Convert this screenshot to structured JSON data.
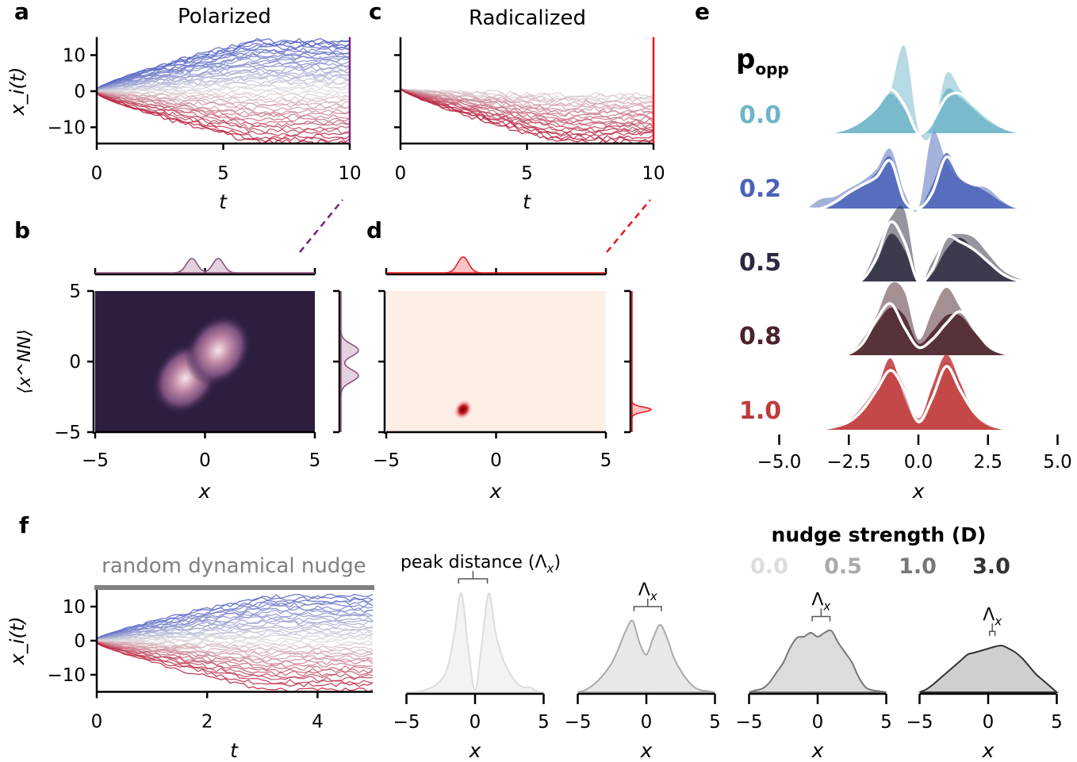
{
  "panel_labels": {
    "a": "a",
    "b": "b",
    "c": "c",
    "d": "d",
    "e": "e",
    "f": "f"
  },
  "colors": {
    "polarized_line": "#7b1f7b",
    "radicalized_line": "#e8141b",
    "heatmap_b_bg": "#2d1e3e",
    "heatmap_d_bg": "#fdeee6",
    "pos_opinion": "#3b4cc0",
    "neutral": "#dddddd",
    "neg_opinion": "#b40426"
  },
  "chart_data": [
    {
      "id": "a",
      "type": "line",
      "title": "Polarized",
      "xlabel": "t",
      "ylabel": "x_i(t)",
      "xlim": [
        0,
        10
      ],
      "ylim": [
        -14.5,
        15
      ],
      "xticks": [
        "0",
        "5",
        "10"
      ],
      "yticks": [
        "10",
        "0",
        "−10"
      ],
      "final_values": [
        14,
        13.5,
        13,
        12.6,
        12,
        11.4,
        11,
        10.4,
        10,
        9.5,
        9,
        8.4,
        7.9,
        7.3,
        6.8,
        6.2,
        5.6,
        5,
        4.4,
        3.8,
        3.2,
        2.6,
        2,
        1.3,
        0.6,
        -0.4,
        -1.2,
        -2,
        -2.7,
        -3.4,
        -4.1,
        -4.8,
        -5.6,
        -6.3,
        -7,
        -7.8,
        -8.6,
        -9.4,
        -10.2,
        -11,
        -11.8,
        -12.6,
        -13.4,
        -14
      ]
    },
    {
      "id": "c",
      "type": "line",
      "title": "Radicalized",
      "xlabel": "t",
      "xlim": [
        0,
        10
      ],
      "ylim": [
        -14.5,
        15
      ],
      "xticks": [
        "0",
        "5",
        "10"
      ],
      "final_values": [
        -1,
        -1.6,
        -2.2,
        -2.8,
        -3.3,
        -3.9,
        -4.4,
        -5,
        -5.5,
        -6.1,
        -6.6,
        -7.2,
        -7.7,
        -8.3,
        -8.8,
        -9.4,
        -9.9,
        -10.5,
        -11,
        -11.6,
        -12.1,
        -12.7,
        -13.3,
        -14
      ]
    },
    {
      "id": "b",
      "type": "heatmap",
      "xlabel": "x",
      "ylabel": "⟨x^NN⟩",
      "xlim": [
        -5,
        5
      ],
      "ylim": [
        -5,
        5
      ],
      "xticks": [
        "−5",
        "0",
        "5"
      ],
      "yticks": [
        "5",
        "0",
        "−5"
      ],
      "modes": [
        {
          "x": -0.9,
          "y": -1.2
        },
        {
          "x": 0.6,
          "y": 0.8
        }
      ],
      "marginal_peaks_x": [
        -0.6,
        0.6
      ],
      "marginal_peaks_y": [
        0.8,
        -1.0
      ]
    },
    {
      "id": "d",
      "type": "heatmap",
      "xlabel": "x",
      "xlim": [
        -5,
        5
      ],
      "ylim": [
        -5,
        5
      ],
      "xticks": [
        "−5",
        "0",
        "5"
      ],
      "modes": [
        {
          "x": -1.5,
          "y": -3.4
        }
      ],
      "marginal_peaks_x": [
        -1.5
      ],
      "marginal_peaks_y": [
        -3.4
      ]
    },
    {
      "id": "e",
      "type": "area",
      "legend_title": "p",
      "legend_title_sub": "opp",
      "xlabel": "x",
      "xlim": [
        -5,
        5
      ],
      "xticks": [
        "−5.0",
        "−2.5",
        "0.0",
        "2.5",
        "5.0"
      ],
      "x": [
        -4,
        -3.5,
        -3,
        -2.5,
        -2,
        -1.5,
        -1,
        -0.5,
        0,
        0.5,
        1,
        1.5,
        2,
        2.5,
        3,
        3.5,
        4
      ],
      "rows": [
        {
          "label": "0.0",
          "color": "#6fb5c9",
          "layers": [
            [
              0,
              0.01,
              0.03,
              0.07,
              0.15,
              0.3,
              0.55,
              1.1,
              0.05,
              0,
              0.75,
              0.55,
              0.35,
              0.2,
              0.1,
              0.03,
              0
            ],
            [
              0,
              0,
              0.02,
              0.06,
              0.15,
              0.3,
              0.5,
              0.3,
              0,
              0.1,
              0.55,
              0.45,
              0.3,
              0.15,
              0.06,
              0.02,
              0
            ]
          ],
          "line": [
            0,
            0,
            0.02,
            0.07,
            0.17,
            0.33,
            0.55,
            0.35,
            0,
            0.15,
            0.45,
            0.5,
            0.35,
            0.2,
            0.08,
            0.02,
            0
          ]
        },
        {
          "label": "0.2",
          "color": "#4a63b8",
          "layers": [
            [
              0,
              0.12,
              0.15,
              0.25,
              0.35,
              0.5,
              0.75,
              0.2,
              0,
              0.95,
              0.6,
              0.35,
              0.3,
              0.25,
              0.1,
              0.02,
              0
            ],
            [
              0,
              0,
              0.1,
              0.2,
              0.3,
              0.45,
              0.65,
              0.1,
              0,
              0.3,
              0.7,
              0.4,
              0.3,
              0.2,
              0.08,
              0,
              0
            ]
          ],
          "line": [
            0,
            0,
            0.08,
            0.2,
            0.3,
            0.4,
            0.6,
            0.1,
            0,
            0.2,
            0.65,
            0.4,
            0.3,
            0.28,
            0.12,
            0.02,
            0
          ]
        },
        {
          "label": "0.5",
          "color": "#2b2b40",
          "layers": [
            [
              0,
              0,
              0,
              0,
              0.05,
              0.4,
              0.8,
              0.9,
              0,
              0.25,
              0.55,
              0.6,
              0.55,
              0.35,
              0.15,
              0.05,
              0
            ],
            [
              0,
              0,
              0,
              0,
              0.02,
              0.25,
              0.6,
              0.4,
              0,
              0.1,
              0.4,
              0.55,
              0.4,
              0.25,
              0.1,
              0.02,
              0
            ]
          ],
          "line": [
            0,
            0,
            0,
            0,
            0.03,
            0.3,
            0.75,
            0.5,
            0,
            0.15,
            0.55,
            0.5,
            0.4,
            0.25,
            0.1,
            0.02,
            0
          ]
        },
        {
          "label": "0.8",
          "color": "#4a2228",
          "layers": [
            [
              0,
              0,
              0,
              0.02,
              0.2,
              0.5,
              0.9,
              0.8,
              0.2,
              0.55,
              0.85,
              0.6,
              0.3,
              0.12,
              0.03,
              0,
              0
            ],
            [
              0,
              0,
              0,
              0.02,
              0.15,
              0.4,
              0.6,
              0.5,
              0.15,
              0.3,
              0.5,
              0.5,
              0.3,
              0.1,
              0.02,
              0,
              0
            ]
          ],
          "line": [
            0,
            0,
            0,
            0.02,
            0.15,
            0.45,
            0.65,
            0.35,
            0.1,
            0.2,
            0.4,
            0.55,
            0.35,
            0.12,
            0.03,
            0,
            0
          ]
        },
        {
          "label": "1.0",
          "color": "#c03a3a",
          "layers": [
            [
              0,
              0.02,
              0.05,
              0.12,
              0.3,
              0.55,
              0.8,
              0.55,
              0.15,
              0.5,
              0.85,
              0.55,
              0.25,
              0.1,
              0.03,
              0.01,
              0
            ],
            [
              0,
              0.01,
              0.03,
              0.1,
              0.25,
              0.5,
              0.9,
              0.4,
              0.1,
              0.55,
              0.95,
              0.6,
              0.2,
              0.05,
              0.01,
              0,
              0
            ]
          ],
          "line": [
            0,
            0.01,
            0.04,
            0.1,
            0.25,
            0.5,
            0.75,
            0.5,
            0.1,
            0.4,
            0.8,
            0.5,
            0.22,
            0.08,
            0.02,
            0.01,
            0
          ]
        }
      ]
    },
    {
      "id": "f_timeseries",
      "type": "line",
      "title": "random dynamical nudge",
      "xlabel": "t",
      "ylabel": "x_i(t)",
      "xlim": [
        0,
        5
      ],
      "ylim": [
        -15,
        15
      ],
      "xticks": [
        "0",
        "2",
        "4"
      ],
      "yticks": [
        "10",
        "0",
        "−10"
      ],
      "final_values": [
        13,
        12.4,
        11.6,
        11,
        10.3,
        9.6,
        9,
        8.3,
        7.6,
        7,
        6.3,
        5.6,
        5,
        4.3,
        3.6,
        3,
        2.3,
        1.6,
        1,
        0.3,
        -0.6,
        -1.4,
        -2.1,
        -2.8,
        -3.5,
        -4.2,
        -5,
        -5.7,
        -6.4,
        -7.2,
        -8,
        -8.8,
        -9.6,
        -10.4,
        -11.2,
        -12,
        -13,
        -14.5
      ]
    },
    {
      "id": "f_kde",
      "type": "area",
      "xlabel": "x",
      "xlim": [
        -5,
        5
      ],
      "xticks": [
        "−5",
        "0",
        "5"
      ],
      "legend_title": "nudge strength (D)",
      "annotation_first": "peak distance (",
      "annotation_symbol": "Λ",
      "annotation_sub": "x",
      "annotation_close": ")",
      "x": [
        -5,
        -4.5,
        -4,
        -3.5,
        -3,
        -2.5,
        -2,
        -1.5,
        -1,
        -0.5,
        0,
        0.5,
        1,
        1.5,
        2,
        2.5,
        3,
        3.5,
        4,
        4.5,
        5
      ],
      "series": [
        {
          "name": "0.0",
          "color": "#dddddd",
          "fill": "#f3f3f3",
          "peak_gap": [
            -1.2,
            0.9
          ],
          "values": [
            0,
            0,
            0.01,
            0.03,
            0.06,
            0.12,
            0.25,
            0.6,
            1.0,
            0.45,
            0.02,
            0.5,
            1.0,
            0.6,
            0.35,
            0.2,
            0.1,
            0.05,
            0.05,
            0.01,
            0
          ]
        },
        {
          "name": "0.5",
          "color": "#aaaaaa",
          "fill": "#e8e8e8",
          "peak_gap": [
            -0.9,
            1.1
          ],
          "values": [
            0,
            0.02,
            0.06,
            0.12,
            0.2,
            0.3,
            0.45,
            0.62,
            0.72,
            0.5,
            0.38,
            0.55,
            0.68,
            0.55,
            0.35,
            0.22,
            0.12,
            0.05,
            0.02,
            0.01,
            0
          ]
        },
        {
          "name": "1.0",
          "color": "#777777",
          "fill": "#dcdcdc",
          "peak_gap": [
            -0.4,
            0.9
          ],
          "values": [
            0,
            0.02,
            0.04,
            0.1,
            0.2,
            0.3,
            0.45,
            0.55,
            0.56,
            0.6,
            0.56,
            0.6,
            0.62,
            0.5,
            0.4,
            0.3,
            0.15,
            0.05,
            0.02,
            0.01,
            0
          ]
        },
        {
          "name": "3.0",
          "color": "#333333",
          "fill": "#cfcfcf",
          "peak_gap": [
            0.1,
            0.5
          ],
          "values": [
            0,
            0.03,
            0.08,
            0.14,
            0.2,
            0.26,
            0.32,
            0.38,
            0.4,
            0.42,
            0.44,
            0.46,
            0.47,
            0.44,
            0.4,
            0.34,
            0.26,
            0.18,
            0.12,
            0.06,
            0
          ]
        }
      ]
    }
  ]
}
